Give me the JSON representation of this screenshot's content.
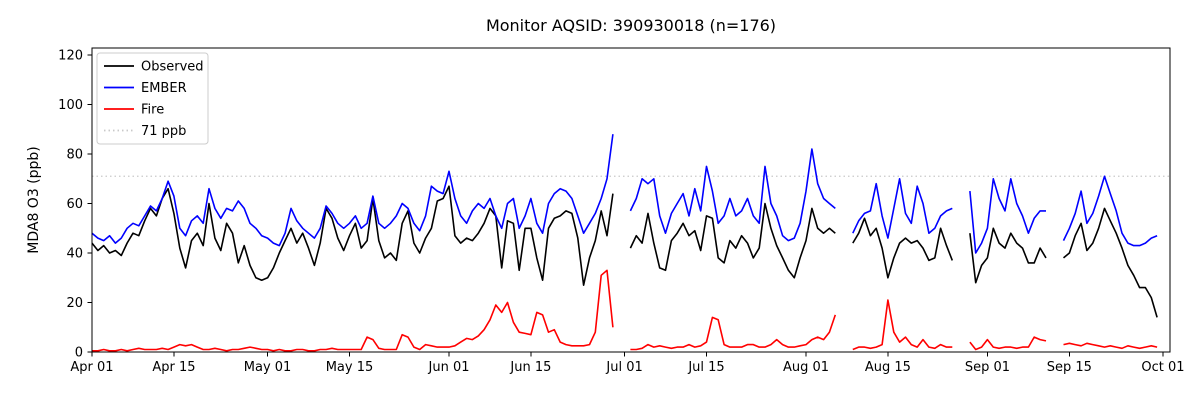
{
  "figure": {
    "title": "Monitor AQSID: 390930018 (n=176)",
    "ylabel": "MDA8 O3 (ppb)",
    "background": "#ffffff"
  },
  "legend": {
    "position": "upper left",
    "items": [
      {
        "label": "Observed",
        "color": "#000000",
        "style": "solid"
      },
      {
        "label": "EMBER",
        "color": "#0000ff",
        "style": "solid"
      },
      {
        "label": "Fire",
        "color": "#ff0000",
        "style": "solid"
      },
      {
        "label": "71 ppb",
        "color": "#c9c9c9",
        "style": "dotted"
      }
    ]
  },
  "chart_data": {
    "type": "line",
    "title": "Monitor AQSID: 390930018 (n=176)",
    "xlabel": "",
    "ylabel": "MDA8 O3 (ppb)",
    "ylim": [
      0,
      123
    ],
    "yticks": [
      0,
      20,
      40,
      60,
      80,
      100,
      120
    ],
    "grid": false,
    "legend_position": "upper left",
    "x_unit": "days since Apr 01",
    "x_total_days": 183,
    "xticks": [
      {
        "label": "Apr 01",
        "day": 0
      },
      {
        "label": "Apr 15",
        "day": 14
      },
      {
        "label": "May 01",
        "day": 30
      },
      {
        "label": "May 15",
        "day": 44
      },
      {
        "label": "Jun 01",
        "day": 61
      },
      {
        "label": "Jun 15",
        "day": 75
      },
      {
        "label": "Jul 01",
        "day": 91
      },
      {
        "label": "Jul 15",
        "day": 105
      },
      {
        "label": "Aug 01",
        "day": 122
      },
      {
        "label": "Aug 15",
        "day": 136
      },
      {
        "label": "Sep 01",
        "day": 153
      },
      {
        "label": "Sep 15",
        "day": 167
      },
      {
        "label": "Oct 01",
        "day": 183
      }
    ],
    "threshold": {
      "value": 71,
      "label": "71 ppb",
      "color": "#c9c9c9",
      "style": "dotted"
    },
    "series": [
      {
        "name": "Observed",
        "color": "#000000",
        "values": [
          44,
          41,
          43,
          40,
          41,
          39,
          44,
          48,
          47,
          53,
          58,
          55,
          62,
          66,
          56,
          42,
          34,
          45,
          48,
          43,
          60,
          46,
          41,
          52,
          48,
          36,
          43,
          35,
          30,
          29,
          30,
          34,
          40,
          45,
          50,
          44,
          48,
          42,
          35,
          44,
          58,
          54,
          46,
          41,
          47,
          52,
          42,
          45,
          62,
          45,
          38,
          40,
          37,
          52,
          57,
          44,
          40,
          46,
          50,
          61,
          62,
          67,
          47,
          44,
          46,
          45,
          48,
          52,
          58,
          55,
          34,
          53,
          52,
          33,
          50,
          50,
          38,
          29,
          50,
          54,
          55,
          57,
          56,
          46,
          27,
          38,
          45,
          57,
          47,
          64,
          null,
          null,
          42,
          47,
          44,
          56,
          44,
          34,
          33,
          45,
          48,
          52,
          47,
          49,
          41,
          55,
          54,
          38,
          36,
          45,
          42,
          47,
          44,
          38,
          42,
          60,
          50,
          43,
          38,
          33,
          30,
          38,
          45,
          58,
          50,
          48,
          50,
          48,
          null,
          null,
          44,
          48,
          54,
          47,
          50,
          42,
          30,
          38,
          44,
          46,
          44,
          45,
          42,
          37,
          38,
          50,
          43,
          37,
          null,
          null,
          48,
          28,
          35,
          38,
          50,
          44,
          42,
          48,
          44,
          42,
          36,
          36,
          42,
          38,
          null,
          null,
          38,
          40,
          47,
          52,
          41,
          44,
          50,
          58,
          53,
          48,
          42,
          35,
          31,
          26,
          26,
          22,
          14
        ]
      },
      {
        "name": "EMBER",
        "color": "#0000ff",
        "values": [
          48,
          46,
          45,
          47,
          44,
          46,
          50,
          52,
          51,
          55,
          59,
          57,
          62,
          69,
          63,
          50,
          47,
          53,
          55,
          52,
          66,
          58,
          54,
          58,
          57,
          61,
          58,
          52,
          50,
          47,
          46,
          44,
          43,
          48,
          58,
          53,
          50,
          48,
          46,
          50,
          59,
          56,
          52,
          50,
          52,
          55,
          50,
          52,
          63,
          52,
          50,
          52,
          55,
          60,
          58,
          52,
          49,
          55,
          67,
          65,
          64,
          73,
          62,
          55,
          52,
          57,
          60,
          58,
          62,
          55,
          50,
          60,
          62,
          50,
          55,
          62,
          52,
          48,
          60,
          64,
          66,
          65,
          62,
          55,
          48,
          52,
          56,
          62,
          70,
          88,
          null,
          null,
          57,
          62,
          70,
          68,
          70,
          55,
          48,
          56,
          60,
          64,
          55,
          66,
          57,
          75,
          65,
          52,
          55,
          62,
          55,
          57,
          62,
          55,
          52,
          75,
          60,
          55,
          47,
          45,
          46,
          52,
          65,
          82,
          68,
          62,
          60,
          58,
          null,
          null,
          48,
          53,
          56,
          57,
          68,
          55,
          46,
          58,
          70,
          56,
          52,
          67,
          60,
          48,
          50,
          55,
          57,
          58,
          null,
          null,
          65,
          40,
          44,
          50,
          70,
          62,
          57,
          70,
          60,
          55,
          48,
          54,
          57,
          57,
          null,
          null,
          45,
          50,
          56,
          65,
          52,
          56,
          63,
          71,
          64,
          57,
          48,
          44,
          43,
          43,
          44,
          46,
          47
        ]
      },
      {
        "name": "Fire",
        "color": "#ff0000",
        "values": [
          0.5,
          0.5,
          1,
          0.5,
          0.5,
          1,
          0.5,
          1,
          1.5,
          1,
          1,
          1,
          1.5,
          1,
          2,
          3,
          2.5,
          3,
          2,
          1,
          1,
          1.5,
          1,
          0.5,
          1,
          1,
          1.5,
          2,
          1.5,
          1,
          1,
          0.5,
          1,
          0.5,
          0.5,
          1,
          1,
          0.5,
          0.5,
          1,
          1,
          1.5,
          1,
          1,
          1,
          1,
          1,
          6,
          5,
          1.5,
          1,
          1,
          1,
          7,
          6,
          2,
          1,
          3,
          2.5,
          2,
          2,
          2,
          2.5,
          4,
          5.5,
          5,
          6.5,
          9,
          13,
          19,
          16,
          20,
          12,
          8,
          7.5,
          7,
          16,
          15,
          8,
          9,
          4,
          3,
          2.5,
          2.5,
          2.5,
          3,
          8,
          31,
          33,
          10,
          null,
          null,
          1,
          1,
          1.5,
          3,
          2,
          2.5,
          2,
          1.5,
          2,
          2,
          3,
          2,
          2.5,
          4,
          14,
          13,
          3,
          2,
          2,
          2,
          3,
          3,
          2,
          2,
          3,
          5,
          3,
          2,
          2,
          2.5,
          3,
          5,
          6,
          5,
          8,
          15,
          null,
          null,
          1,
          2,
          2,
          1.5,
          2,
          3,
          21,
          8,
          4,
          6,
          3,
          2,
          5,
          2,
          1.5,
          3,
          2,
          2,
          null,
          null,
          4,
          1,
          2,
          5,
          2,
          1.5,
          2,
          2,
          1.5,
          2,
          2,
          6,
          5,
          4.5,
          null,
          null,
          3,
          3.5,
          3,
          2.5,
          3.5,
          3,
          2.5,
          2,
          2.5,
          2,
          1.5,
          2.5,
          2,
          1.5,
          2,
          2.5,
          2
        ]
      }
    ]
  }
}
